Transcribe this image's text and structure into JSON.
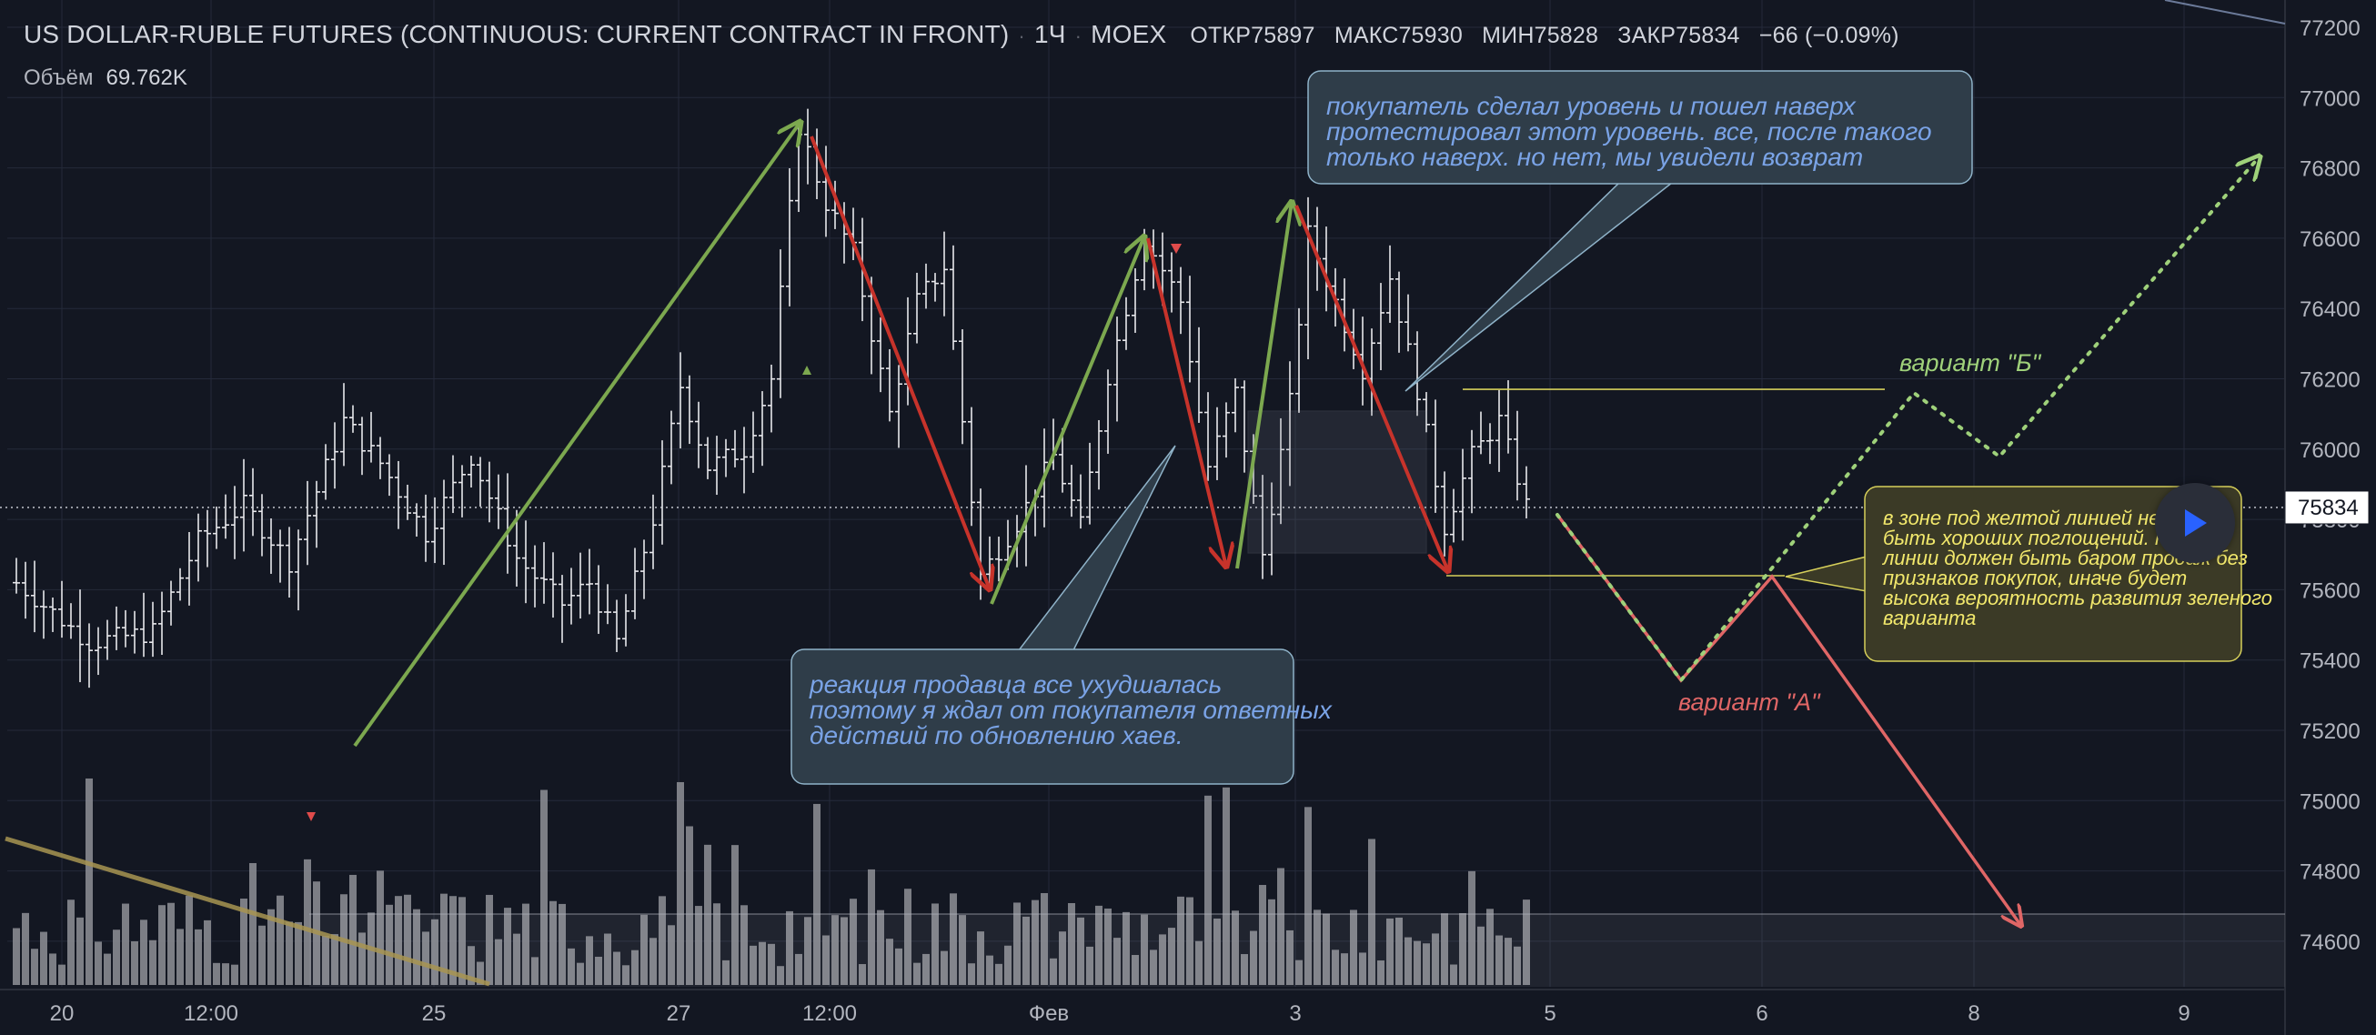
{
  "header": {
    "title": "US DOLLAR-RUBLE FUTURES (CONTINUOUS: CURRENT CONTRACT IN FRONT)",
    "interval": "1Ч",
    "exchange": "MOEX",
    "ohlc": {
      "open_label": "ОТКР",
      "open": "75897",
      "high_label": "МАКС",
      "high": "75930",
      "low_label": "МИН",
      "low": "75828",
      "close_label": "ЗАКР",
      "close": "75834",
      "change": "−66 (−0.09%)"
    }
  },
  "volume_legend": {
    "label": "Объём",
    "value": "69.762K"
  },
  "price_label": "75834",
  "colors": {
    "background": "#131722",
    "grid": "#242a3a",
    "candle": "#e8e8ec",
    "volume": "#8f9196",
    "green_arrow": "#7ca84f",
    "red_arrow": "#c7332b",
    "forecast_red": "#e06666",
    "forecast_green": "#9fd17a",
    "yellow_line": "#d6cf5a",
    "callout_blue_text": "#7aa3e6",
    "callout_yellow_text": "#f2e86c"
  },
  "icons": {
    "play": "play-icon"
  },
  "chart_data": {
    "type": "candlestick",
    "y_ticks": [
      "77200",
      "77000",
      "76800",
      "76600",
      "76400",
      "76200",
      "76000",
      "75800",
      "75600",
      "75400",
      "75200",
      "75000",
      "74800",
      "74600"
    ],
    "ylim": [
      74450,
      77280
    ],
    "x_ticks": [
      "20",
      "12:00",
      "25",
      "27",
      "12:00",
      "Фев",
      "3",
      "5",
      "6",
      "8",
      "9"
    ],
    "last_price": 75834,
    "series_anchors": [
      [
        0,
        75620
      ],
      [
        8,
        75450
      ],
      [
        15,
        75480
      ],
      [
        20,
        75740
      ],
      [
        25,
        75840
      ],
      [
        30,
        75680
      ],
      [
        36,
        76080
      ],
      [
        40,
        75960
      ],
      [
        45,
        75760
      ],
      [
        50,
        75980
      ],
      [
        55,
        75690
      ],
      [
        60,
        75560
      ],
      [
        63,
        75620
      ],
      [
        66,
        75450
      ],
      [
        70,
        75800
      ],
      [
        73,
        76180
      ],
      [
        76,
        75950
      ],
      [
        80,
        76000
      ],
      [
        83,
        76200
      ],
      [
        86,
        76920
      ],
      [
        89,
        76700
      ],
      [
        92,
        76560
      ],
      [
        96,
        76100
      ],
      [
        99,
        76420
      ],
      [
        102,
        76520
      ],
      [
        106,
        75640
      ],
      [
        110,
        75790
      ],
      [
        114,
        75980
      ],
      [
        117,
        75780
      ],
      [
        120,
        76210
      ],
      [
        124,
        76600
      ],
      [
        128,
        76420
      ],
      [
        131,
        75950
      ],
      [
        134,
        76160
      ],
      [
        137,
        75700
      ],
      [
        140,
        76130
      ],
      [
        142,
        76610
      ],
      [
        145,
        76420
      ],
      [
        148,
        76230
      ],
      [
        151,
        76490
      ],
      [
        154,
        76170
      ],
      [
        157,
        75780
      ],
      [
        160,
        75980
      ],
      [
        163,
        76080
      ],
      [
        166,
        75840
      ]
    ],
    "forecast": {
      "variant_A": {
        "label": "вариант \"А\"",
        "points": [
          [
            75830,
            0
          ],
          [
            75340,
            1
          ],
          [
            75630,
            2
          ],
          [
            74700,
            3
          ]
        ]
      },
      "variant_B": {
        "label": "вариант \"Б\"",
        "points": [
          [
            75830,
            0
          ],
          [
            75340,
            1
          ],
          [
            76170,
            2
          ],
          [
            75980,
            3
          ],
          [
            76800,
            4
          ]
        ]
      }
    },
    "yellow_levels": [
      76170,
      75640
    ],
    "volume_profile_note": "volume histogram at bottom"
  },
  "annotations": {
    "top_callout": "покупатель сделал уровень и пошел наверх протестировал этот уровень. все, после такого только наверх. но нет, мы увидели возврат",
    "bottom_callout": "реакция продавца все ухудшалась поэтому я ждал от покупателя ответных действий по обновлению хаев.",
    "right_callout": "в зоне под желтой линией не должно быть хороших поглощений. пробой линии должен быть баром продаж без признаков покупок, иначе будет высока вероятность развития зеленого варианта"
  }
}
